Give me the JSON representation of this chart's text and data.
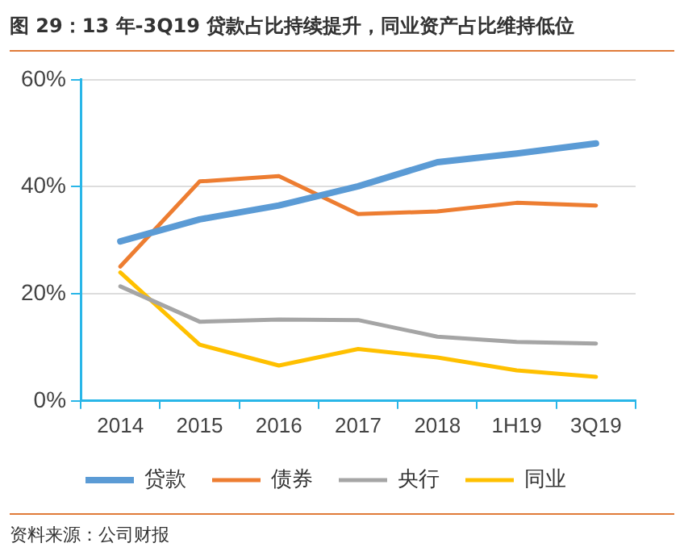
{
  "chart_data": {
    "type": "line",
    "title": "图 29：13 年-3Q19 贷款占比持续提升，同业资产占比维持低位",
    "categories": [
      "2014",
      "2015",
      "2016",
      "2017",
      "2018",
      "1H19",
      "3Q19"
    ],
    "series": [
      {
        "name": "贷款",
        "color": "#5b9bd5",
        "values": [
          29.8,
          33.9,
          36.5,
          40.1,
          44.6,
          46.2,
          48.1
        ]
      },
      {
        "name": "债券",
        "color": "#ed7d31",
        "values": [
          25.1,
          41.0,
          42.0,
          34.9,
          35.4,
          37.0,
          36.5
        ]
      },
      {
        "name": "央行",
        "color": "#a5a5a5",
        "values": [
          21.4,
          14.8,
          15.2,
          15.1,
          12.0,
          11.0,
          10.7
        ]
      },
      {
        "name": "同业",
        "color": "#ffc000",
        "values": [
          24.0,
          10.5,
          6.6,
          9.7,
          8.1,
          5.7,
          4.5
        ]
      }
    ],
    "ylim": [
      0,
      60
    ],
    "yticks": [
      {
        "value": 0,
        "label": "0%"
      },
      {
        "value": 20,
        "label": "20%"
      },
      {
        "value": 40,
        "label": "40%"
      },
      {
        "value": 60,
        "label": "60%"
      }
    ],
    "grid": "y",
    "legend": "bottom",
    "marker": "none",
    "line_style": "solid",
    "annotations": [
      "资料来源：公司财报"
    ]
  }
}
